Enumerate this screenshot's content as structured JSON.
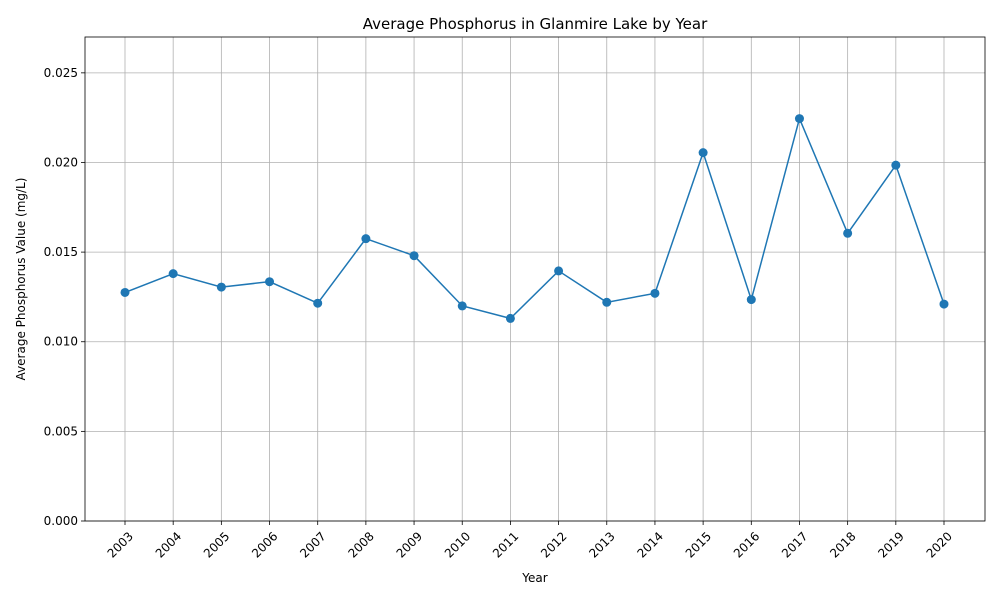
{
  "chart_data": {
    "type": "line",
    "title": "Average Phosphorus in Glanmire Lake by Year",
    "xlabel": "Year",
    "ylabel": "Average Phosphorus Value (mg/L)",
    "categories": [
      "2003",
      "2004",
      "2005",
      "2006",
      "2007",
      "2008",
      "2009",
      "2010",
      "2011",
      "2012",
      "2013",
      "2014",
      "2015",
      "2016",
      "2017",
      "2018",
      "2019",
      "2020"
    ],
    "series": [
      {
        "values": [
          0.01275,
          0.0138,
          0.01305,
          0.01335,
          0.01215,
          0.01575,
          0.0148,
          0.012,
          0.0113,
          0.01395,
          0.0122,
          0.0127,
          0.02055,
          0.01235,
          0.02245,
          0.01605,
          0.01985,
          0.0121
        ],
        "color": "#1f77b4",
        "marker": "circle"
      }
    ],
    "ylim": [
      0,
      0.027
    ],
    "yticks": [
      "0.000",
      "0.005",
      "0.010",
      "0.015",
      "0.020",
      "0.025"
    ],
    "ytick_values": [
      0,
      0.005,
      0.01,
      0.015,
      0.02,
      0.025
    ],
    "grid": true,
    "xtick_rotation": "45deg"
  }
}
